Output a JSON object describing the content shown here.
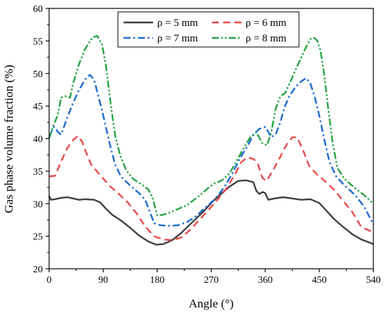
{
  "chart_data": {
    "type": "line",
    "title": "",
    "xlabel": "Angle (°)",
    "ylabel": "Gas phase volume fraction (%)",
    "xlim": [
      0,
      540
    ],
    "ylim": [
      20,
      60
    ],
    "xticks": [
      0,
      90,
      180,
      270,
      360,
      450,
      540
    ],
    "yticks": [
      20,
      25,
      30,
      35,
      40,
      45,
      50,
      55,
      60
    ],
    "grid": false,
    "legend_position": "top-center",
    "series": [
      {
        "name": "ρ = 5 mm",
        "color": "#404040",
        "dash": "solid",
        "points": [
          [
            0,
            31.2
          ],
          [
            3,
            30.6
          ],
          [
            10,
            30.7
          ],
          [
            20,
            30.9
          ],
          [
            30,
            31.0
          ],
          [
            40,
            30.8
          ],
          [
            50,
            30.6
          ],
          [
            60,
            30.7
          ],
          [
            75,
            30.6
          ],
          [
            85,
            30.2
          ],
          [
            95,
            29.2
          ],
          [
            105,
            28.3
          ],
          [
            120,
            27.4
          ],
          [
            135,
            26.3
          ],
          [
            150,
            25.1
          ],
          [
            165,
            24.2
          ],
          [
            178,
            23.7
          ],
          [
            190,
            23.8
          ],
          [
            205,
            24.4
          ],
          [
            220,
            25.5
          ],
          [
            240,
            27.3
          ],
          [
            255,
            28.6
          ],
          [
            270,
            30.1
          ],
          [
            285,
            31.4
          ],
          [
            300,
            32.6
          ],
          [
            315,
            33.5
          ],
          [
            328,
            33.6
          ],
          [
            340,
            33.3
          ],
          [
            345,
            32.0
          ],
          [
            350,
            31.5
          ],
          [
            356,
            31.8
          ],
          [
            360,
            31.6
          ],
          [
            365,
            30.6
          ],
          [
            375,
            30.8
          ],
          [
            390,
            31.0
          ],
          [
            405,
            30.8
          ],
          [
            420,
            30.6
          ],
          [
            435,
            30.7
          ],
          [
            450,
            30.1
          ],
          [
            462,
            28.9
          ],
          [
            475,
            27.6
          ],
          [
            490,
            26.4
          ],
          [
            505,
            25.3
          ],
          [
            520,
            24.5
          ],
          [
            540,
            23.8
          ]
        ]
      },
      {
        "name": "ρ = 6 mm",
        "color": "#e84a4a",
        "dash": "long-dash",
        "points": [
          [
            0,
            34.2
          ],
          [
            10,
            34.3
          ],
          [
            20,
            36.5
          ],
          [
            30,
            38.5
          ],
          [
            40,
            39.8
          ],
          [
            48,
            40.4
          ],
          [
            55,
            39.5
          ],
          [
            62,
            37.8
          ],
          [
            70,
            36.0
          ],
          [
            85,
            34.4
          ],
          [
            100,
            32.8
          ],
          [
            115,
            31.6
          ],
          [
            130,
            30.3
          ],
          [
            145,
            28.6
          ],
          [
            160,
            26.5
          ],
          [
            175,
            25.0
          ],
          [
            190,
            24.5
          ],
          [
            205,
            24.4
          ],
          [
            220,
            24.8
          ],
          [
            235,
            26.0
          ],
          [
            250,
            27.5
          ],
          [
            265,
            29.0
          ],
          [
            280,
            30.6
          ],
          [
            295,
            32.3
          ],
          [
            310,
            34.6
          ],
          [
            320,
            36.4
          ],
          [
            330,
            37.1
          ],
          [
            340,
            36.9
          ],
          [
            347,
            36.3
          ],
          [
            355,
            34.0
          ],
          [
            362,
            33.5
          ],
          [
            372,
            35.0
          ],
          [
            385,
            37.2
          ],
          [
            395,
            39.0
          ],
          [
            405,
            40.2
          ],
          [
            413,
            40.2
          ],
          [
            423,
            38.2
          ],
          [
            433,
            35.8
          ],
          [
            445,
            34.6
          ],
          [
            460,
            33.4
          ],
          [
            475,
            32.1
          ],
          [
            490,
            30.4
          ],
          [
            505,
            28.7
          ],
          [
            520,
            26.4
          ],
          [
            540,
            25.6
          ]
        ]
      },
      {
        "name": "ρ = 7 mm",
        "color": "#1c6bd0",
        "dash": "dash-dot",
        "points": [
          [
            0,
            40.3
          ],
          [
            8,
            41.8
          ],
          [
            15,
            41.0
          ],
          [
            20,
            40.6
          ],
          [
            30,
            43.2
          ],
          [
            40,
            45.5
          ],
          [
            50,
            47.5
          ],
          [
            60,
            49.1
          ],
          [
            68,
            49.8
          ],
          [
            75,
            49.0
          ],
          [
            82,
            46.5
          ],
          [
            90,
            43.6
          ],
          [
            100,
            39.5
          ],
          [
            110,
            36.0
          ],
          [
            120,
            34.1
          ],
          [
            135,
            32.8
          ],
          [
            150,
            31.6
          ],
          [
            160,
            30.6
          ],
          [
            165,
            29.4
          ],
          [
            175,
            27.0
          ],
          [
            185,
            26.7
          ],
          [
            200,
            26.6
          ],
          [
            215,
            26.7
          ],
          [
            230,
            27.2
          ],
          [
            245,
            28.1
          ],
          [
            260,
            29.4
          ],
          [
            275,
            30.6
          ],
          [
            290,
            32.3
          ],
          [
            305,
            34.6
          ],
          [
            318,
            37.0
          ],
          [
            330,
            38.8
          ],
          [
            340,
            40.5
          ],
          [
            350,
            41.5
          ],
          [
            360,
            41.8
          ],
          [
            365,
            41.0
          ],
          [
            370,
            40.2
          ],
          [
            378,
            40.8
          ],
          [
            385,
            42.5
          ],
          [
            392,
            44.8
          ],
          [
            400,
            46.5
          ],
          [
            410,
            47.9
          ],
          [
            420,
            48.8
          ],
          [
            428,
            49.3
          ],
          [
            435,
            48.5
          ],
          [
            442,
            46.5
          ],
          [
            450,
            43.5
          ],
          [
            458,
            40.0
          ],
          [
            467,
            36.4
          ],
          [
            478,
            34.2
          ],
          [
            492,
            32.8
          ],
          [
            510,
            31.3
          ],
          [
            525,
            29.5
          ],
          [
            540,
            26.8
          ]
        ]
      },
      {
        "name": "ρ = 8 mm",
        "color": "#27a444",
        "dash": "dash-dot-dot",
        "points": [
          [
            0,
            40.0
          ],
          [
            7,
            42.0
          ],
          [
            14,
            43.5
          ],
          [
            20,
            46.3
          ],
          [
            27,
            46.5
          ],
          [
            35,
            46.3
          ],
          [
            40,
            48.5
          ],
          [
            50,
            51.5
          ],
          [
            60,
            53.8
          ],
          [
            72,
            55.5
          ],
          [
            80,
            55.8
          ],
          [
            88,
            54.5
          ],
          [
            95,
            51.0
          ],
          [
            103,
            45.0
          ],
          [
            110,
            40.5
          ],
          [
            118,
            37.5
          ],
          [
            128,
            35.2
          ],
          [
            140,
            33.8
          ],
          [
            155,
            32.9
          ],
          [
            165,
            32.2
          ],
          [
            172,
            31.0
          ],
          [
            180,
            28.2
          ],
          [
            190,
            28.3
          ],
          [
            200,
            28.6
          ],
          [
            215,
            29.2
          ],
          [
            230,
            29.8
          ],
          [
            250,
            31.2
          ],
          [
            265,
            32.4
          ],
          [
            275,
            33.1
          ],
          [
            288,
            33.6
          ],
          [
            300,
            34.6
          ],
          [
            312,
            36.5
          ],
          [
            322,
            38.2
          ],
          [
            335,
            40.2
          ],
          [
            345,
            41.0
          ],
          [
            355,
            39.3
          ],
          [
            363,
            39.0
          ],
          [
            370,
            41.0
          ],
          [
            377,
            44.5
          ],
          [
            385,
            46.5
          ],
          [
            393,
            47.0
          ],
          [
            403,
            49.0
          ],
          [
            415,
            51.5
          ],
          [
            425,
            53.5
          ],
          [
            435,
            55.3
          ],
          [
            441,
            55.5
          ],
          [
            447,
            55.0
          ],
          [
            452,
            53.5
          ],
          [
            458,
            50.0
          ],
          [
            465,
            44.5
          ],
          [
            472,
            39.5
          ],
          [
            480,
            35.5
          ],
          [
            492,
            33.8
          ],
          [
            508,
            32.5
          ],
          [
            525,
            31.3
          ],
          [
            540,
            30.0
          ]
        ]
      }
    ]
  }
}
